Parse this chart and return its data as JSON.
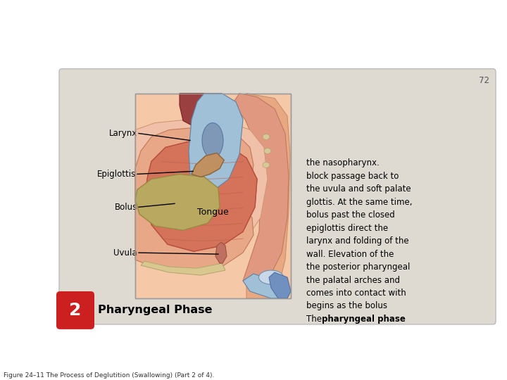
{
  "figure_title": "Figure 24–11 The Process of Deglutition (Swallowing) (Part 2 of 4).",
  "figure_title_fontsize": 6.5,
  "page_number": "72",
  "card_bg_color": "#dedad2",
  "card_border_color": "#bbbbbb",
  "badge_color": "#cc2020",
  "badge_number": "2",
  "phase_title": "Pharyngeal Phase",
  "phase_title_fontsize": 11.5,
  "description_lines": [
    [
      "The ",
      false
    ],
    [
      "pharyngeal phase",
      true
    ],
    [
      "begins as the bolus",
      false
    ],
    [
      "comes into contact with",
      false
    ],
    [
      "the palatal arches and",
      false
    ],
    [
      "the posterior pharyngeal",
      false
    ],
    [
      "wall. Elevation of the",
      false
    ],
    [
      "larynx and folding of the",
      false
    ],
    [
      "epiglottis direct the",
      false
    ],
    [
      "bolus past the closed",
      false
    ],
    [
      "glottis. At the same time,",
      false
    ],
    [
      "the uvula and soft palate",
      false
    ],
    [
      "block passage back to",
      false
    ],
    [
      "the nasopharynx.",
      false
    ]
  ],
  "description_fontsize": 8.5,
  "label_fontsize": 8.5,
  "white_color": "#ffffff",
  "black_color": "#000000",
  "skin_light": "#f5c9a8",
  "skin_mid": "#e8a882",
  "tongue_color": "#d4735a",
  "tongue_dark": "#b85040",
  "bolus_color": "#b8a860",
  "bolus_dark": "#9a8840",
  "epiglottis_color": "#c09060",
  "blue_accent": "#7090c0",
  "blue_light": "#a0c0d8",
  "dark_red": "#8b3030",
  "nasal_color": "#c8d8e8"
}
